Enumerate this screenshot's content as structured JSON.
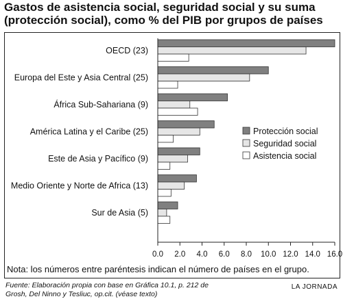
{
  "title": "Gastos de asistencia social, seguridad social y su suma (protección social), como % del PIB por grupos de países",
  "note": "Nota: los números entre paréntesis indican el número de países en el grupo.",
  "source": "Fuente: Elaboración propia con base en Gráfica 10.1, p. 212 de Grosh, Del Ninno y Tesliuc, op.cit. (véase texto)",
  "credit": "LA JORNADA",
  "colors": {
    "proteccion": "#808080",
    "seguridad": "#e6e6e6",
    "asistencia": "#ffffff",
    "stroke": "#333333"
  },
  "chart_data": {
    "type": "bar",
    "orientation": "horizontal",
    "categories": [
      "OECD (23)",
      "Europa del Este y Asia Central (25)",
      "África Sub-Sahariana (9)",
      "América Latina y el Caribe (25)",
      "Este de Asia y Pacífico (9)",
      "Medio Oriente y Norte de Africa (13)",
      "Sur de Asia (5)"
    ],
    "series": [
      {
        "name": "Protección social",
        "values": [
          16.0,
          10.0,
          6.3,
          5.1,
          3.8,
          3.5,
          1.8
        ]
      },
      {
        "name": "Seguridad social",
        "values": [
          13.4,
          8.3,
          2.9,
          3.8,
          2.7,
          2.4,
          0.8
        ]
      },
      {
        "name": "Asistencia social",
        "values": [
          2.8,
          1.8,
          3.6,
          1.4,
          1.1,
          1.2,
          1.1
        ]
      }
    ],
    "xlim": [
      0,
      16
    ],
    "xticks": [
      "0.0",
      "2.0",
      "4.0",
      "6.0",
      "8.0",
      "10.0",
      "12.0",
      "14.0",
      "16.0"
    ],
    "legend_position": "right"
  }
}
